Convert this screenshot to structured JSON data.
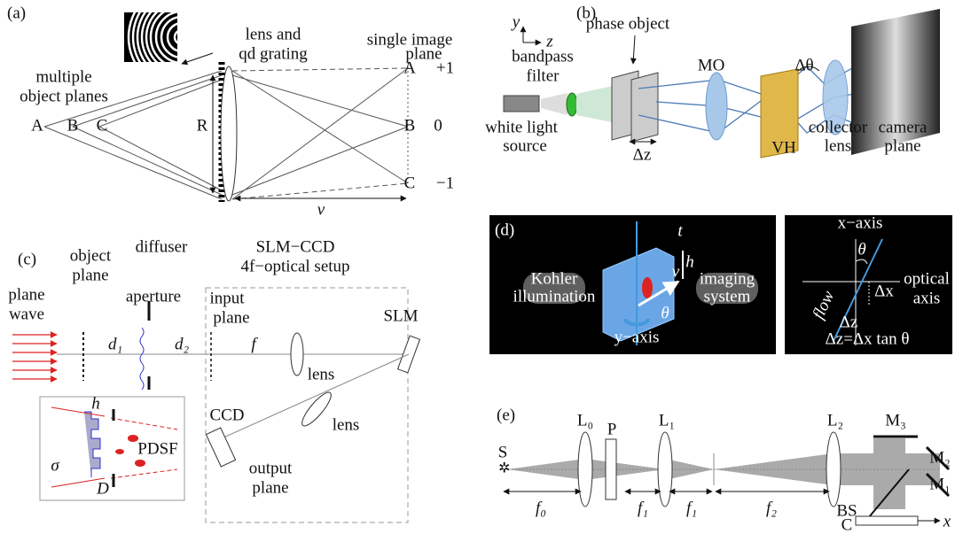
{
  "panel_a": {
    "tag": "(a)",
    "lens_label": [
      "lens and",
      "qd grating"
    ],
    "object_planes": [
      "multiple",
      "object planes"
    ],
    "object_points": [
      "A",
      "B",
      "C"
    ],
    "radius": "R",
    "image_plane": [
      "single image",
      "plane"
    ],
    "image_points": [
      "A",
      "B",
      "C"
    ],
    "orders": [
      "+1",
      "0",
      "−1"
    ],
    "distance": "v"
  },
  "panel_b": {
    "tag": "(b)",
    "axes": [
      "y",
      "z"
    ],
    "phase_object": "phase object",
    "filter": [
      "bandpass",
      "filter"
    ],
    "source": [
      "white light",
      "source"
    ],
    "shift": "Δz",
    "objective": "MO",
    "angle": "Δθ",
    "hologram": "VH",
    "collector": [
      "collector",
      "lens"
    ],
    "camera": [
      "camera",
      "plane"
    ]
  },
  "panel_c": {
    "tag": "(c)",
    "object_plane": [
      "object",
      "plane"
    ],
    "diffuser": "diffuser",
    "setup": [
      "SLM−CCD",
      "4f−optical setup"
    ],
    "wave": [
      "plane",
      "wave"
    ],
    "aperture": "aperture",
    "input_plane": [
      "input",
      "plane"
    ],
    "slm": "SLM",
    "distances": [
      "d₁",
      "d₂",
      "f"
    ],
    "lenses": [
      "lens",
      "lens"
    ],
    "ccd": "CCD",
    "output_plane": [
      "output",
      "plane"
    ],
    "inset": {
      "height": "h",
      "psf": "PDSF",
      "sigma": "σ",
      "width": "D"
    }
  },
  "panel_d": {
    "tag": "(d)",
    "illumination": [
      "Kohler",
      "illumination"
    ],
    "imaging": [
      "imaging",
      "system"
    ],
    "thickness": "t",
    "height": "h",
    "velocity": "v",
    "angle": "θ",
    "y_axis": "y−axis",
    "x_axis": "x−axis",
    "angle2": "θ",
    "optical_axis": [
      "optical",
      "axis"
    ],
    "flow": "flow",
    "dx": "Δx",
    "dz": "Δz",
    "relation": "Δz=Δx tan θ"
  },
  "panel_e": {
    "tag": "(e)",
    "source": "S",
    "elements": [
      "L₀",
      "P",
      "L₁",
      "L₂"
    ],
    "mirrors": [
      "M₃",
      "M₂",
      "M₁"
    ],
    "splitter": "BS",
    "camera": "C",
    "axis": "x",
    "distances": [
      "f₀",
      "f₁",
      "f₁",
      "f₂"
    ]
  }
}
